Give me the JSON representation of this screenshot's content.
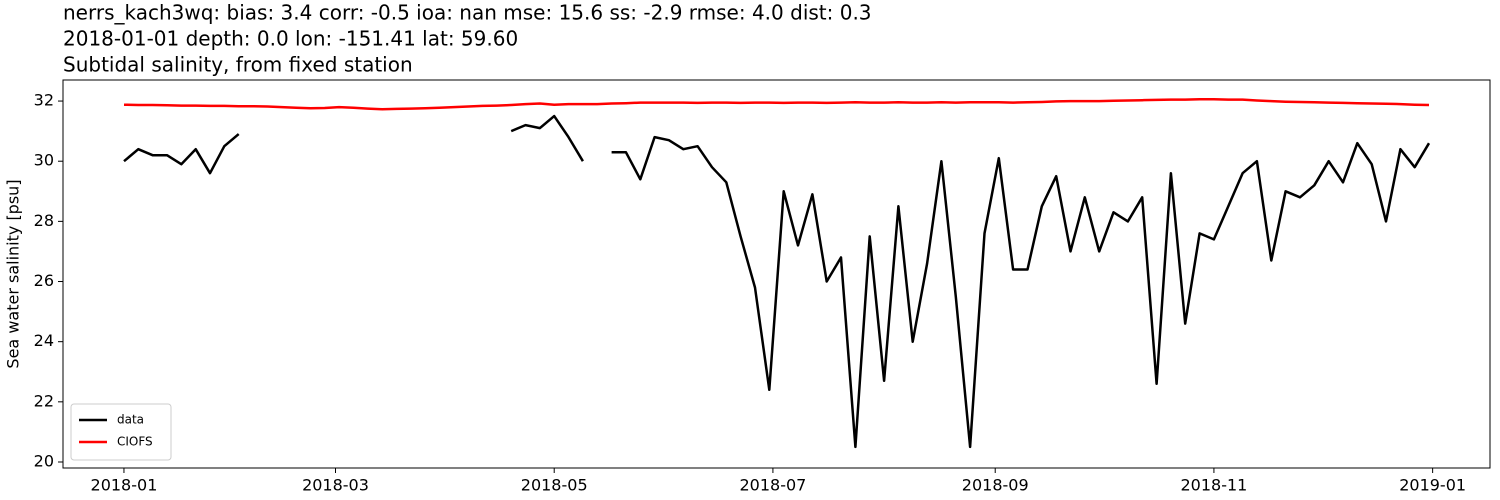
{
  "chart_data": {
    "type": "line",
    "title_lines": [
      "nerrs_kach3wq: bias: 3.4  corr: -0.5  ioa: nan  mse: 15.6  ss: -2.9  rmse: 4.0  dist: 0.3",
      "2018-01-01 depth: 0.0 lon: -151.41 lat: 59.60",
      "Subtidal salinity, from fixed station"
    ],
    "y_label": "Sea water salinity [psu]",
    "x": [
      0,
      4,
      8,
      12,
      16,
      20,
      24,
      28,
      32,
      36,
      40,
      44,
      48,
      52,
      56,
      60,
      64,
      68,
      72,
      76,
      80,
      84,
      88,
      92,
      96,
      100,
      104,
      108,
      112,
      116,
      120,
      124,
      128,
      132,
      136,
      140,
      144,
      148,
      152,
      156,
      160,
      164,
      168,
      172,
      176,
      180,
      184,
      188,
      192,
      196,
      200,
      204,
      208,
      212,
      216,
      220,
      224,
      228,
      232,
      236,
      240,
      244,
      248,
      252,
      256,
      260,
      264,
      268,
      272,
      276,
      280,
      284,
      288,
      292,
      296,
      300,
      304,
      308,
      312,
      316,
      320,
      324,
      328,
      332,
      336,
      340,
      344,
      348,
      352,
      356,
      360,
      364
    ],
    "series": [
      {
        "name": "data",
        "color": "#000000",
        "values": [
          30.0,
          30.4,
          30.2,
          30.2,
          29.9,
          30.4,
          29.6,
          30.5,
          30.9,
          null,
          null,
          null,
          null,
          null,
          null,
          null,
          null,
          null,
          null,
          null,
          null,
          null,
          null,
          null,
          null,
          null,
          null,
          31.0,
          31.2,
          31.1,
          31.5,
          30.8,
          30.0,
          null,
          30.3,
          30.3,
          29.4,
          30.8,
          30.7,
          30.4,
          30.5,
          29.8,
          29.3,
          27.5,
          25.8,
          22.4,
          29.0,
          27.2,
          28.9,
          26.0,
          26.8,
          20.5,
          27.5,
          22.7,
          28.5,
          24.0,
          26.6,
          30.0,
          25.5,
          20.5,
          27.6,
          30.1,
          26.4,
          26.4,
          28.5,
          29.5,
          27.0,
          28.8,
          27.0,
          28.3,
          28.0,
          28.8,
          22.6,
          29.6,
          24.6,
          27.6,
          27.4,
          28.5,
          29.6,
          30.0,
          26.7,
          29.0,
          28.8,
          29.2,
          30.0,
          29.3,
          30.6,
          29.9,
          28.0,
          30.4,
          29.8,
          30.6
        ]
      },
      {
        "name": "CIOFS",
        "color": "#ff0000",
        "values": [
          31.88,
          31.87,
          31.87,
          31.86,
          31.85,
          31.85,
          31.84,
          31.84,
          31.83,
          31.83,
          31.82,
          31.8,
          31.78,
          31.76,
          31.77,
          31.8,
          31.78,
          31.75,
          31.73,
          31.74,
          31.75,
          31.76,
          31.78,
          31.8,
          31.82,
          31.84,
          31.85,
          31.87,
          31.9,
          31.92,
          31.88,
          31.9,
          31.9,
          31.9,
          31.92,
          31.93,
          31.95,
          31.95,
          31.95,
          31.95,
          31.94,
          31.95,
          31.95,
          31.94,
          31.95,
          31.95,
          31.94,
          31.95,
          31.95,
          31.94,
          31.95,
          31.96,
          31.95,
          31.95,
          31.96,
          31.95,
          31.95,
          31.96,
          31.95,
          31.96,
          31.96,
          31.96,
          31.95,
          31.96,
          31.97,
          31.99,
          32.0,
          32.0,
          32.0,
          32.01,
          32.02,
          32.03,
          32.04,
          32.05,
          32.05,
          32.06,
          32.06,
          32.05,
          32.05,
          32.02,
          32.0,
          31.98,
          31.97,
          31.96,
          31.95,
          31.94,
          31.93,
          31.92,
          31.91,
          31.9,
          31.88,
          31.87
        ]
      }
    ],
    "xlim": [
      -17,
      381
    ],
    "xticks": [
      {
        "value": 0,
        "label": "2018-01"
      },
      {
        "value": 59,
        "label": "2018-03"
      },
      {
        "value": 120,
        "label": "2018-05"
      },
      {
        "value": 181,
        "label": "2018-07"
      },
      {
        "value": 243,
        "label": "2018-09"
      },
      {
        "value": 304,
        "label": "2018-11"
      },
      {
        "value": 365,
        "label": "2019-01"
      }
    ],
    "ylim": [
      19.8,
      32.7
    ],
    "yticks": [
      20,
      22,
      24,
      26,
      28,
      30,
      32
    ],
    "grid": false,
    "legend": "lower left"
  }
}
